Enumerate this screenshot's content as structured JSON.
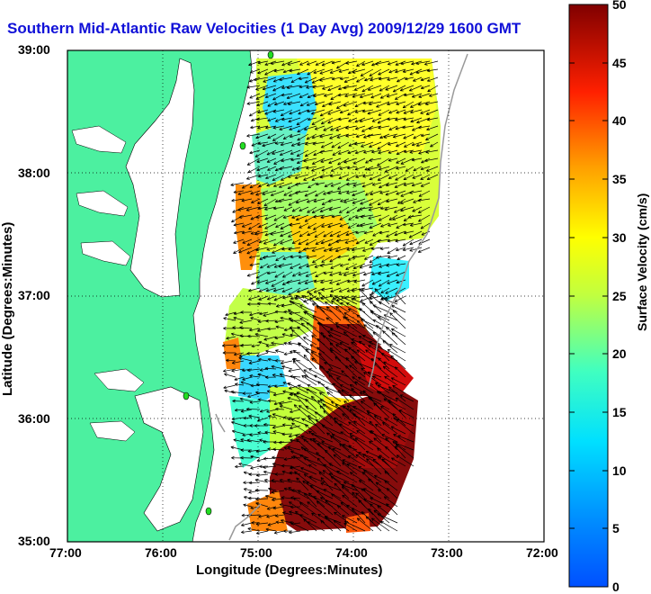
{
  "title": "Southern Mid-Atlantic Raw Velocities (1 Day Avg) 2009/12/29 1600 GMT",
  "x_axis": {
    "label": "Longitude (Degrees:Minutes)",
    "ticks": [
      "77:00",
      "76:00",
      "75:00",
      "74:00",
      "73:00",
      "72:00"
    ]
  },
  "y_axis": {
    "label": "Latitude (Degrees:Minutes)",
    "ticks": [
      "39:00",
      "38:00",
      "37:00",
      "36:00",
      "35:00"
    ]
  },
  "colorbar": {
    "label": "Surface Velocity (cm/s)",
    "ticks": [
      "50",
      "45",
      "40",
      "35",
      "30",
      "25",
      "20",
      "15",
      "10",
      "5",
      "0"
    ],
    "min": 0,
    "max": 50,
    "colormap": "jet"
  },
  "colors": {
    "land": "#4cf0a0",
    "title": "#1010d8",
    "station": "#22dd22"
  },
  "map": {
    "lon_range": [
      "77:00",
      "72:00"
    ],
    "lat_range": [
      "35:00",
      "39:00"
    ],
    "grid": "dotted"
  }
}
